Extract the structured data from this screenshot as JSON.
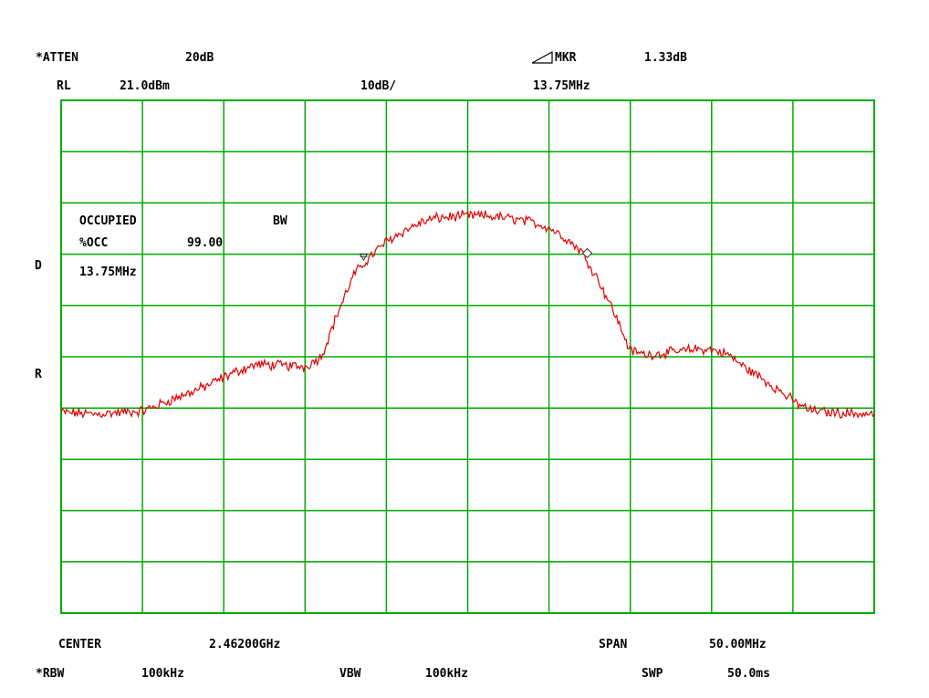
{
  "header": {
    "atten_label": "*ATTEN",
    "atten_value": "20dB",
    "delta_marker_label": "MKR",
    "delta_marker_value": "1.33dB",
    "ref_level_label": "RL",
    "ref_level_value": "21.0dBm",
    "scale": "10dB/",
    "delta_marker_freq": "13.75MHz"
  },
  "side_labels": {
    "d": "D",
    "r": "R"
  },
  "annotation": {
    "line1_left": "OCCUPIED",
    "line1_right": "BW",
    "occ_label": "%OCC",
    "occ_value": "99.00",
    "bandwidth": "13.75MHz"
  },
  "footer": {
    "center_label": "CENTER",
    "center_value": "2.46200GHz",
    "span_label": "SPAN",
    "span_value": "50.00MHz",
    "rbw_label": "*RBW",
    "rbw_value": "100kHz",
    "vbw_label": "VBW",
    "vbw_value": "100kHz",
    "sweep_label": "SWP",
    "sweep_value": "50.0ms"
  },
  "colors": {
    "grid": "#00aa00",
    "trace": "#e00000",
    "marker": "#333333"
  },
  "chart_data": {
    "type": "line",
    "title": "",
    "xlabel": "",
    "ylabel": "",
    "x_unit": "MHz",
    "y_unit": "dBm",
    "xlim": [
      2437.0,
      2487.0
    ],
    "ylim": [
      -79.0,
      21.0
    ],
    "grid": true,
    "grid_divisions": [
      10,
      10
    ],
    "series": [
      {
        "x": [
          2437.0,
          2438.0,
          2439.0,
          2440.0,
          2441.0,
          2442.0,
          2443.0,
          2444.0,
          2445.0,
          2446.0,
          2447.0,
          2448.0,
          2449.0,
          2450.0,
          2451.0,
          2452.0,
          2453.0,
          2454.0,
          2455.0,
          2456.0,
          2457.0,
          2458.0,
          2459.0,
          2460.0,
          2461.0,
          2462.0,
          2463.0,
          2464.0,
          2465.0,
          2466.0,
          2467.0,
          2468.0,
          2469.0,
          2470.0,
          2471.0,
          2472.0,
          2473.0,
          2474.0,
          2475.0,
          2476.0,
          2477.0,
          2478.0,
          2479.0,
          2480.0,
          2481.0,
          2482.0,
          2483.0,
          2484.0,
          2485.0,
          2486.0,
          2487.0
        ],
        "y": [
          -39.8,
          -40.0,
          -40.2,
          -40.0,
          -39.8,
          -39.6,
          -38.4,
          -37.1,
          -35.9,
          -34.6,
          -33.0,
          -31.6,
          -30.5,
          -30.6,
          -30.8,
          -30.9,
          -29.0,
          -20.5,
          -13.0,
          -9.5,
          -6.5,
          -4.6,
          -3.0,
          -2.0,
          -1.7,
          -1.5,
          -1.5,
          -1.8,
          -2.2,
          -2.8,
          -3.8,
          -5.8,
          -8.4,
          -13.8,
          -20.3,
          -27.8,
          -28.6,
          -28.3,
          -28.0,
          -27.5,
          -27.6,
          -28.5,
          -31.0,
          -33.0,
          -35.2,
          -37.6,
          -39.4,
          -39.8,
          -39.9,
          -40.1,
          -40.2
        ]
      }
    ],
    "markers": [
      {
        "type": "reference",
        "x": 2455.6,
        "y": -10.0
      },
      {
        "type": "delta",
        "x": 2469.35,
        "y": -8.8
      }
    ]
  }
}
